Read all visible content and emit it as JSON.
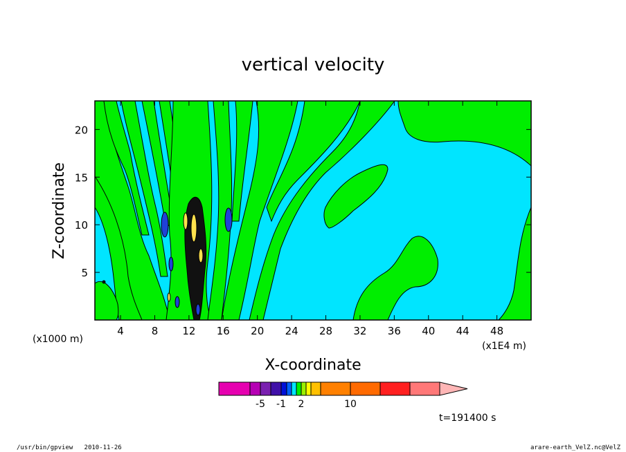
{
  "footer": {
    "left": "/usr/bin/gpview   2010-11-26",
    "right": "arare-earth_VelZ.nc@VelZ"
  },
  "chart_data": {
    "type": "contour",
    "title": "vertical velocity",
    "xlabel": "X-coordinate",
    "ylabel": "Z-coordinate",
    "x_unit_label": "(x1000 m)",
    "x_scale_label": "(x1E4 m)",
    "xlim": [
      1,
      52
    ],
    "ylim": [
      0,
      23
    ],
    "x_ticks": [
      4,
      8,
      12,
      16,
      20,
      24,
      28,
      32,
      36,
      40,
      44,
      48
    ],
    "y_ticks": [
      5,
      10,
      15,
      20
    ],
    "time_label": "t=191400 s",
    "colors": {
      "background": "#00e5ff",
      "positive_weak": "#00ee00",
      "strong_up": "#ffe14d",
      "strong_down": "#2040d8",
      "core": "#111111"
    },
    "colorbar": {
      "segments": [
        "#e600b0",
        "#b600b4",
        "#7a20b0",
        "#4010a8",
        "#0010d8",
        "#0060ff",
        "#00e5ff",
        "#00ee00",
        "#9cf000",
        "#ffff00",
        "#ffc000",
        "#ff8000",
        "#ff6a00",
        "#ff2020",
        "#ff7878"
      ],
      "extension_color": "#ffb6b6",
      "tick_labels": [
        "-5",
        "-1",
        "2",
        "10"
      ]
    }
  }
}
